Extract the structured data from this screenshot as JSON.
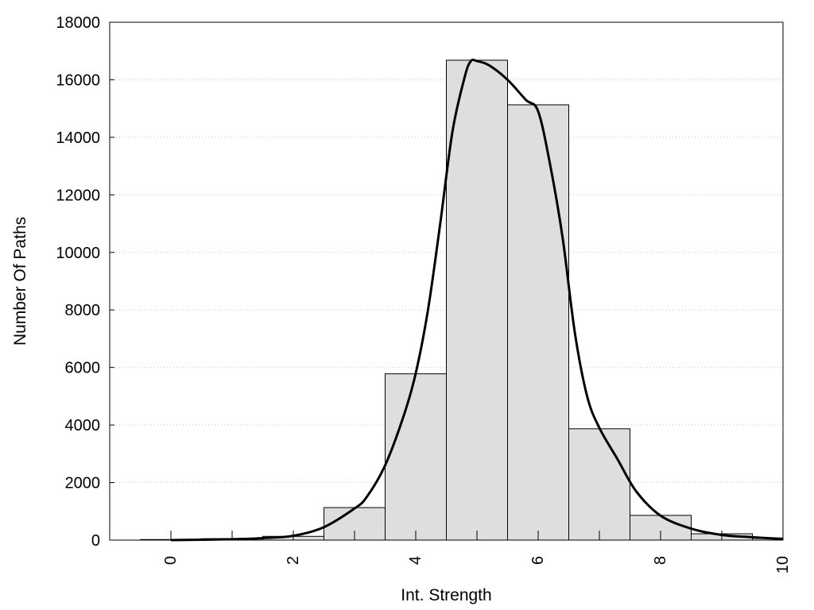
{
  "chart_data": {
    "type": "bar",
    "xlabel": "Int. Strength",
    "ylabel": "Number Of Paths",
    "xlim": [
      -1,
      10
    ],
    "ylim": [
      0,
      18000
    ],
    "x_ticks": [
      0,
      2,
      4,
      6,
      8,
      10
    ],
    "y_ticks": [
      0,
      2000,
      4000,
      6000,
      8000,
      10000,
      12000,
      14000,
      16000,
      18000
    ],
    "grid": "horizontal dotted",
    "bar_width": 1,
    "bars": [
      {
        "x": 0,
        "value": 20
      },
      {
        "x": 1,
        "value": 50
      },
      {
        "x": 2,
        "value": 130
      },
      {
        "x": 3,
        "value": 1130
      },
      {
        "x": 4,
        "value": 5780
      },
      {
        "x": 5,
        "value": 16680
      },
      {
        "x": 6,
        "value": 15130
      },
      {
        "x": 7,
        "value": 3870
      },
      {
        "x": 8,
        "value": 860
      },
      {
        "x": 9,
        "value": 220
      },
      {
        "x": 10,
        "value": 60
      }
    ],
    "curve": {
      "x": [
        0,
        1,
        1.5,
        2,
        2.5,
        3,
        3.2,
        3.5,
        3.8,
        4,
        4.2,
        4.4,
        4.6,
        4.8,
        4.9,
        5,
        5.2,
        5.5,
        5.8,
        6,
        6.2,
        6.4,
        6.6,
        6.8,
        7,
        7.3,
        7.6,
        8,
        8.5,
        9,
        9.5,
        10
      ],
      "y": [
        0,
        30,
        70,
        150,
        450,
        1100,
        1500,
        2600,
        4300,
        5800,
        8000,
        11000,
        14200,
        16100,
        16650,
        16650,
        16500,
        16000,
        15300,
        14900,
        13000,
        10500,
        7200,
        5000,
        3900,
        2800,
        1700,
        850,
        400,
        180,
        100,
        40
      ]
    }
  },
  "colors": {
    "bar_fill": "#dedede",
    "bar_stroke": "#000000",
    "curve": "#000000",
    "grid": "#c8c8c8"
  }
}
